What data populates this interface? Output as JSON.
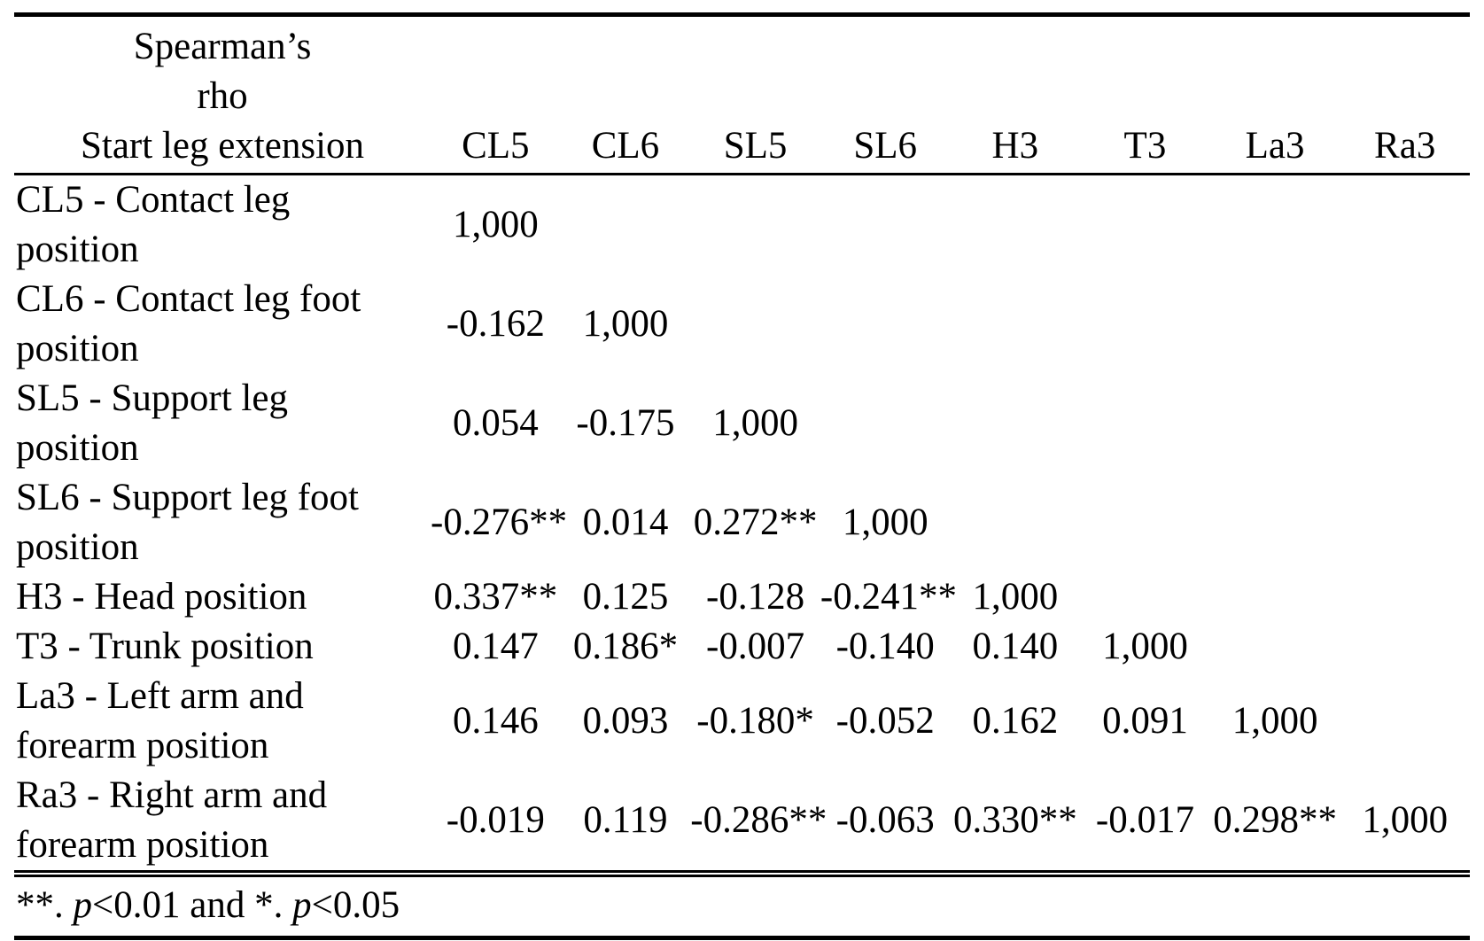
{
  "colors": {
    "text": "#000000",
    "background": "#ffffff"
  },
  "table": {
    "header": {
      "corner_title": "Spearman’s\nrho",
      "corner_subtitle": "Start leg extension",
      "columns": [
        "CL5",
        "CL6",
        "SL5",
        "SL6",
        "H3",
        "T3",
        "La3",
        "Ra3"
      ]
    },
    "rows": [
      {
        "label": "CL5 - Contact leg\nposition",
        "values": [
          "1,000",
          "",
          "",
          "",
          "",
          "",
          "",
          ""
        ]
      },
      {
        "label": "CL6 - Contact leg foot\nposition",
        "values": [
          "-0.162",
          "1,000",
          "",
          "",
          "",
          "",
          "",
          ""
        ]
      },
      {
        "label": "SL5 - Support leg\nposition",
        "values": [
          "0.054",
          "-0.175",
          "1,000",
          "",
          "",
          "",
          "",
          ""
        ]
      },
      {
        "label": "SL6 - Support leg foot\nposition",
        "values": [
          "-0.276**",
          "0.014",
          "0.272**",
          "1,000",
          "",
          "",
          "",
          ""
        ]
      },
      {
        "label": "H3 - Head position",
        "values": [
          "0.337**",
          "0.125",
          "-0.128",
          "-0.241**",
          "1,000",
          "",
          "",
          ""
        ]
      },
      {
        "label": "T3 - Trunk position",
        "values": [
          "0.147",
          "0.186*",
          "-0.007",
          "-0.140",
          "0.140",
          "1,000",
          "",
          ""
        ]
      },
      {
        "label": "La3 - Left arm and\nforearm position",
        "values": [
          "0.146",
          "0.093",
          "-0.180*",
          "-0.052",
          "0.162",
          "0.091",
          "1,000",
          ""
        ]
      },
      {
        "label": "Ra3 - Right arm and\nforearm position",
        "values": [
          "-0.019",
          "0.119",
          "-0.286**",
          "-0.063",
          "0.330**",
          "-0.017",
          "0.298**",
          "1,000"
        ]
      }
    ]
  },
  "footnote": {
    "part1": "**. ",
    "p1": "p",
    "part2": "<0.01 and *. ",
    "p2": "p",
    "part3": "<0.05"
  }
}
